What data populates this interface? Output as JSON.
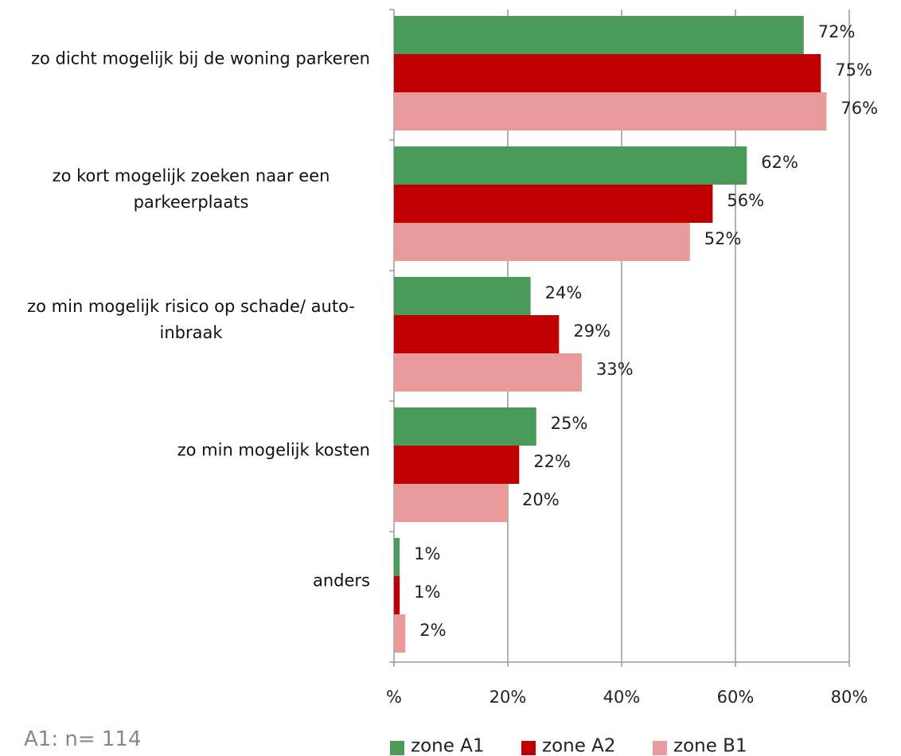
{
  "chart_data": {
    "type": "bar",
    "orientation": "horizontal",
    "categories": [
      "zo dicht mogelijk bij de woning parkeren",
      "zo kort mogelijk zoeken naar een parkeerplaats",
      "zo min mogelijk risico op schade/ auto-inbraak",
      "zo min mogelijk kosten",
      "anders"
    ],
    "series": [
      {
        "name": "zone A1",
        "color": "#4a9a5a",
        "values": [
          72,
          62,
          24,
          25,
          1
        ],
        "value_labels": [
          "72%",
          "62%",
          "24%",
          "25%",
          "1%"
        ]
      },
      {
        "name": "zone A2",
        "color": "#c00000",
        "values": [
          75,
          56,
          29,
          22,
          1
        ],
        "value_labels": [
          "75%",
          "56%",
          "29%",
          "22%",
          "1%"
        ]
      },
      {
        "name": "zone B1",
        "color": "#e99a9a",
        "values": [
          76,
          52,
          33,
          20,
          2
        ],
        "value_labels": [
          "76%",
          "52%",
          "33%",
          "20%",
          "2%"
        ]
      }
    ],
    "xlim": [
      0,
      80
    ],
    "xticks": [
      {
        "value": 0,
        "label": "%"
      },
      {
        "value": 20,
        "label": "20%"
      },
      {
        "value": 40,
        "label": "40%"
      },
      {
        "value": 60,
        "label": "60%"
      },
      {
        "value": 80,
        "label": "80%"
      }
    ],
    "grid": true,
    "legend": "bottom",
    "annotation": "A1: n= 114"
  }
}
